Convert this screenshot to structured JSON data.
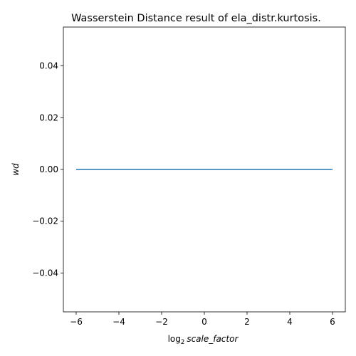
{
  "chart_data": {
    "type": "line",
    "title": "Wasserstein Distance result of ela_distr.kurtosis.",
    "xlabel": {
      "prefix": "log",
      "subscript": "2",
      "variable": "scale_factor"
    },
    "ylabel": "wd",
    "x": [
      -6,
      -5,
      -4,
      -3,
      -2,
      -1,
      0,
      1,
      2,
      3,
      4,
      5,
      6
    ],
    "series": [
      {
        "values": [
          0,
          0,
          0,
          0,
          0,
          0,
          0,
          0,
          0,
          0,
          0,
          0,
          0
        ],
        "color": "#1f77b4"
      }
    ],
    "xlim": [
      -6.6,
      6.6
    ],
    "ylim": [
      -0.055,
      0.055
    ],
    "xticks": [
      -6,
      -4,
      -2,
      0,
      2,
      4,
      6
    ],
    "xtick_labels": [
      "−6",
      "−4",
      "−2",
      "0",
      "2",
      "4",
      "6"
    ],
    "yticks": [
      -0.04,
      -0.02,
      0.0,
      0.02,
      0.04
    ],
    "ytick_labels": [
      "−0.04",
      "−0.02",
      "0.00",
      "0.02",
      "0.04"
    ],
    "grid": false,
    "legend": "none"
  }
}
